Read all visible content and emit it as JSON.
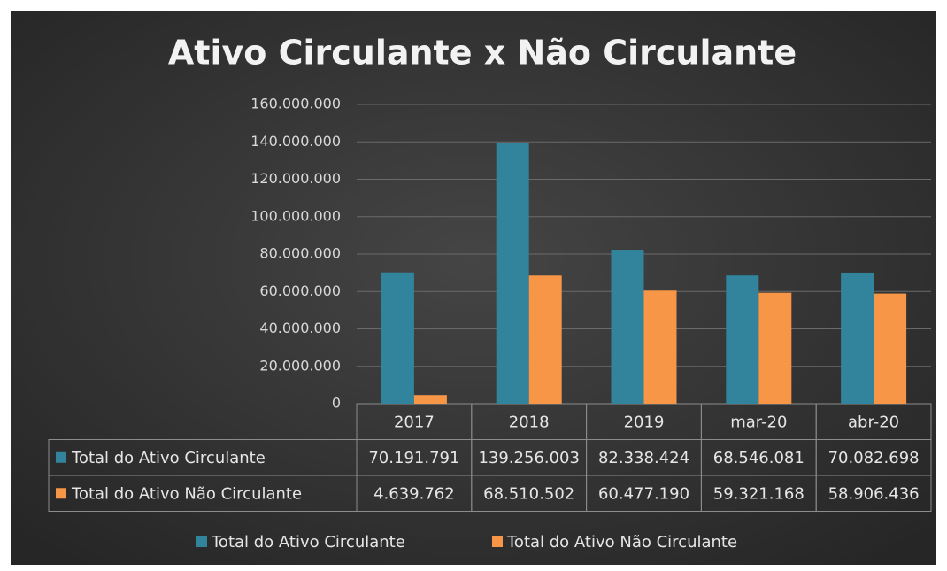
{
  "chart_data": {
    "type": "bar",
    "title": "Ativo Circulante x Não Circulante",
    "categories": [
      "2017",
      "2018",
      "2019",
      "mar-20",
      "abr-20"
    ],
    "series": [
      {
        "name": "Total do Ativo Circulante",
        "color": "#31849b",
        "values": [
          70191791,
          139256003,
          82338424,
          68546081,
          70082698
        ],
        "value_labels": [
          "70.191.791",
          "139.256.003",
          "82.338.424",
          "68.546.081",
          "70.082.698"
        ]
      },
      {
        "name": "Total do Ativo Não Circulante",
        "color": "#f79646",
        "values": [
          4639762,
          68510502,
          60477190,
          59321168,
          58906436
        ],
        "value_labels": [
          "4.639.762",
          "68.510.502",
          "60.477.190",
          "59.321.168",
          "58.906.436"
        ]
      }
    ],
    "ylim": [
      0,
      160000000
    ],
    "yticks": [
      0,
      {
        "value": 20000000,
        "label": "20.000.000"
      },
      {
        "value": 40000000,
        "label": "40.000.000"
      },
      {
        "value": 60000000,
        "label": "60.000.000"
      },
      {
        "value": 80000000,
        "label": "80.000.000"
      },
      {
        "value": 100000000,
        "label": "100.000.000"
      },
      {
        "value": 120000000,
        "label": "120.000.000"
      },
      {
        "value": 140000000,
        "label": "140.000.000"
      },
      {
        "value": 160000000,
        "label": "160.000.000"
      }
    ],
    "grid": true,
    "legend": "bottom"
  }
}
